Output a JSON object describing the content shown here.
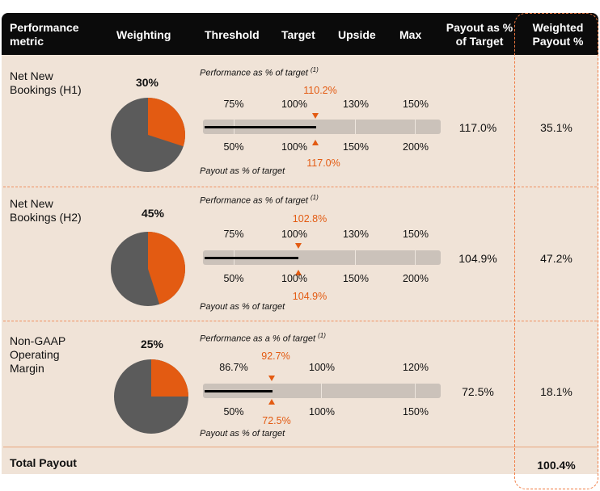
{
  "headers": {
    "metric": "Performance metric",
    "weighting": "Weighting",
    "threshold": "Threshold",
    "target": "Target",
    "upside": "Upside",
    "max": "Max",
    "payout_pct": "Payout as % of Target",
    "weighted": "Weighted Payout %"
  },
  "colors": {
    "accent": "#e35b12",
    "pie_dark": "#5b5b5b",
    "background": "#f0e3d7",
    "header": "#0b0b0b"
  },
  "rows": [
    {
      "metric": [
        "Net New",
        "Bookings (H1)"
      ],
      "weighting": "30%",
      "weight_fraction": 0.3,
      "perf_label": "Performance as % of target",
      "perf_note": "(1)",
      "perf_ticks": [
        "75%",
        "100%",
        "130%",
        "150%"
      ],
      "perf_value": "110.2%",
      "payout_ticks": [
        "50%",
        "100%",
        "150%",
        "200%"
      ],
      "payout_value": "117.0%",
      "payout_label": "Payout as % of target",
      "payout_pct": "117.0%",
      "weighted": "35.1%"
    },
    {
      "metric": [
        "Net New",
        "Bookings (H2)"
      ],
      "weighting": "45%",
      "weight_fraction": 0.45,
      "perf_label": "Performance as % of target",
      "perf_note": "(1)",
      "perf_ticks": [
        "75%",
        "100%",
        "130%",
        "150%"
      ],
      "perf_value": "102.8%",
      "payout_ticks": [
        "50%",
        "100%",
        "150%",
        "200%"
      ],
      "payout_value": "104.9%",
      "payout_label": "Payout as % of target",
      "payout_pct": "104.9%",
      "weighted": "47.2%"
    },
    {
      "metric": [
        "Non-GAAP",
        "Operating",
        "Margin"
      ],
      "weighting": "25%",
      "weight_fraction": 0.25,
      "perf_label": "Performance as a % of target",
      "perf_note": "(1)",
      "perf_ticks": [
        "86.7%",
        "100%",
        "120%"
      ],
      "perf_value": "92.7%",
      "payout_ticks": [
        "50%",
        "100%",
        "150%"
      ],
      "payout_value": "72.5%",
      "payout_label": "Payout as % of target",
      "payout_pct": "72.5%",
      "weighted": "18.1%"
    }
  ],
  "total": {
    "label": "Total Payout",
    "value": "100.4%"
  }
}
